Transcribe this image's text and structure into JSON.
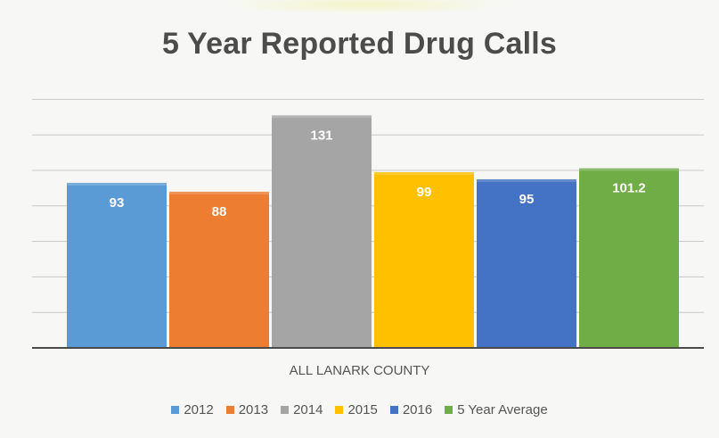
{
  "chart_data": {
    "type": "bar",
    "title": "5 Year Reported Drug Calls",
    "xlabel": "ALL LANARK COUNTY",
    "ylabel": "",
    "categories": [
      "ALL LANARK COUNTY"
    ],
    "ylim": [
      0,
      140
    ],
    "grid": true,
    "legend_position": "bottom",
    "series": [
      {
        "name": "2012",
        "values": [
          93
        ],
        "label": "93",
        "color": "#5b9bd5"
      },
      {
        "name": "2013",
        "values": [
          88
        ],
        "label": "88",
        "color": "#ed7d31"
      },
      {
        "name": "2014",
        "values": [
          131
        ],
        "label": "131",
        "color": "#a5a5a5"
      },
      {
        "name": "2015",
        "values": [
          99
        ],
        "label": "99",
        "color": "#ffc000"
      },
      {
        "name": "2016",
        "values": [
          95
        ],
        "label": "95",
        "color": "#4472c4"
      },
      {
        "name": "5 Year Average",
        "values": [
          101.2
        ],
        "label": "101.2",
        "color": "#70ad47"
      }
    ]
  }
}
